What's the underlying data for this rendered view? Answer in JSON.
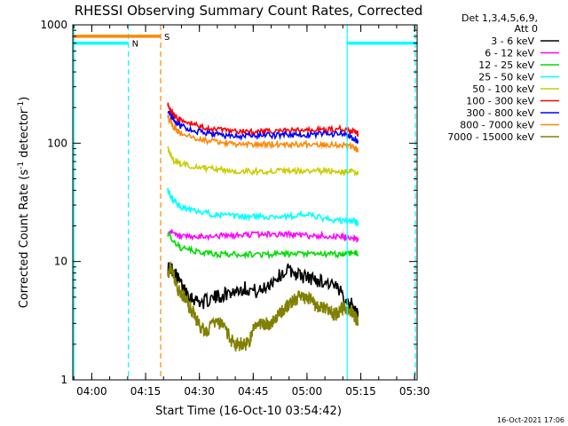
{
  "chart_data": {
    "type": "line",
    "title": "RHESSI Observing Summary Count Rates, Corrected",
    "xlabel": "Start Time (16-Oct-10 03:54:42)",
    "ylabel_main": "Corrected Count Rate (s",
    "ylabel_sup1": "-1",
    "ylabel_mid": " detector",
    "ylabel_sup2": "-1",
    "ylabel_end": ")",
    "x_unit": "minutes after 03:54:42",
    "xlim": [
      0,
      96
    ],
    "ylim": [
      1,
      1000
    ],
    "y_scale": "log",
    "x_ticks": [
      {
        "value": 5.3,
        "label": "04:00"
      },
      {
        "value": 20.3,
        "label": "04:15"
      },
      {
        "value": 35.3,
        "label": "04:30"
      },
      {
        "value": 50.3,
        "label": "04:45"
      },
      {
        "value": 65.3,
        "label": "05:00"
      },
      {
        "value": 80.3,
        "label": "05:15"
      },
      {
        "value": 95.3,
        "label": "05:30"
      }
    ],
    "y_ticks": [
      {
        "value": 1,
        "label": "1"
      },
      {
        "value": 10,
        "label": "10"
      },
      {
        "value": 100,
        "label": "100"
      },
      {
        "value": 1000,
        "label": "1000"
      }
    ],
    "legend_header": [
      "Det 1,3,4,5,6,9,",
      "Att 0"
    ],
    "legend": [
      {
        "name": "3 - 6 keV",
        "color": "#000000"
      },
      {
        "name": "6 - 12 keV",
        "color": "#ff00ff"
      },
      {
        "name": "12 - 25 keV",
        "color": "#00dd00"
      },
      {
        "name": "25 - 50 keV",
        "color": "#00ffff"
      },
      {
        "name": "50 - 100 keV",
        "color": "#cccc00"
      },
      {
        "name": "100 - 300 keV",
        "color": "#ff0000"
      },
      {
        "name": "300 - 800 keV",
        "color": "#0000ff"
      },
      {
        "name": "800 - 7000 keV",
        "color": "#ff8800"
      },
      {
        "name": "7000 - 15000 keV",
        "color": "#808000"
      }
    ],
    "series": [
      {
        "name": "3 - 6 keV",
        "color": "#000000",
        "x": [
          26.5,
          28,
          30,
          33,
          36,
          40,
          44,
          48,
          52,
          56,
          60,
          64,
          68,
          72,
          76,
          78.5,
          79.5
        ],
        "y": [
          9,
          8.5,
          6.5,
          5,
          4.5,
          5,
          5.5,
          6,
          5.5,
          7,
          8.5,
          7.5,
          7,
          6.5,
          5,
          4,
          3.5
        ]
      },
      {
        "name": "6 - 12 keV",
        "color": "#ff00ff",
        "x": [
          26.5,
          30,
          35,
          40,
          45,
          50,
          55,
          60,
          65,
          70,
          75,
          78.5,
          79.5
        ],
        "y": [
          18,
          16,
          16,
          16.5,
          16.5,
          17,
          17,
          17,
          16.5,
          16.5,
          16,
          16,
          15
        ]
      },
      {
        "name": "12 - 25 keV",
        "color": "#00dd00",
        "x": [
          26.5,
          30,
          35,
          40,
          45,
          50,
          55,
          60,
          65,
          70,
          75,
          78.5,
          79.5
        ],
        "y": [
          17,
          13,
          12,
          11.5,
          11.5,
          11.5,
          11.5,
          11.5,
          11.5,
          11.5,
          11.5,
          12,
          11.5
        ]
      },
      {
        "name": "25 - 50 keV",
        "color": "#00ffff",
        "x": [
          26.5,
          28,
          30,
          35,
          40,
          45,
          50,
          55,
          60,
          65,
          70,
          75,
          78.5,
          79.5
        ],
        "y": [
          40,
          33,
          29,
          26,
          25,
          24,
          24,
          24,
          24,
          25,
          23,
          22,
          22,
          21
        ]
      },
      {
        "name": "50 - 100 keV",
        "color": "#cccc00",
        "x": [
          26.5,
          28,
          30,
          35,
          40,
          45,
          50,
          55,
          60,
          65,
          70,
          75,
          78.5,
          79.5
        ],
        "y": [
          90,
          72,
          67,
          63,
          60,
          58,
          58,
          58,
          58,
          58,
          58,
          57,
          57,
          56
        ]
      },
      {
        "name": "100 - 300 keV",
        "color": "#ff0000",
        "x": [
          26.5,
          28,
          30,
          35,
          40,
          45,
          50,
          55,
          60,
          65,
          70,
          75,
          78.5,
          79.5
        ],
        "y": [
          210,
          175,
          155,
          140,
          130,
          125,
          125,
          125,
          128,
          128,
          130,
          132,
          125,
          120
        ]
      },
      {
        "name": "300 - 800 keV",
        "color": "#0000ff",
        "x": [
          26.5,
          28,
          30,
          35,
          40,
          45,
          50,
          55,
          60,
          65,
          70,
          75,
          78.5,
          79.5
        ],
        "y": [
          185,
          160,
          140,
          125,
          118,
          115,
          115,
          116,
          118,
          118,
          120,
          120,
          108,
          103
        ]
      },
      {
        "name": "800 - 7000 keV",
        "color": "#ff8800",
        "x": [
          26.5,
          28,
          30,
          35,
          40,
          45,
          50,
          55,
          60,
          65,
          70,
          75,
          78.5,
          79.5
        ],
        "y": [
          165,
          140,
          120,
          108,
          102,
          98,
          97,
          98,
          98,
          98,
          98,
          97,
          92,
          88
        ]
      },
      {
        "name": "7000 - 15000 keV",
        "color": "#808000",
        "x": [
          26.5,
          27.5,
          29,
          31,
          33,
          35,
          37,
          39,
          41,
          43,
          45,
          47,
          49,
          51,
          53,
          55,
          57,
          59,
          61,
          63,
          65,
          67,
          69,
          71,
          73,
          75,
          77,
          78.5,
          79.5
        ],
        "y": [
          8,
          9,
          6,
          5,
          4,
          3,
          2.5,
          3,
          3,
          2.5,
          2,
          2,
          2,
          3,
          3,
          3,
          3.5,
          4,
          4.5,
          5,
          5,
          4.5,
          4,
          4,
          3.5,
          4,
          4,
          3.5,
          3
        ]
      }
    ],
    "flags": [
      {
        "label": "N",
        "color": "#00ffff",
        "level": 700,
        "segments": [
          [
            0,
            15.5
          ],
          [
            76.5,
            96
          ]
        ]
      },
      {
        "label": "S",
        "color": "#ff8800",
        "level": 800,
        "segments": [
          [
            0,
            24.5
          ]
        ]
      }
    ],
    "vertical_markers": [
      {
        "x": 0.3,
        "color": "#00ffff",
        "style": "solid"
      },
      {
        "x": 15.5,
        "color": "#00ffff",
        "style": "dashed"
      },
      {
        "x": 24.5,
        "color": "#ff8800",
        "style": "dashed"
      },
      {
        "x": 76.5,
        "color": "#00ffff",
        "style": "solid"
      },
      {
        "x": 95.5,
        "color": "#00ffff",
        "style": "dashed"
      }
    ],
    "footer": "16-Oct-2021 17:06"
  }
}
